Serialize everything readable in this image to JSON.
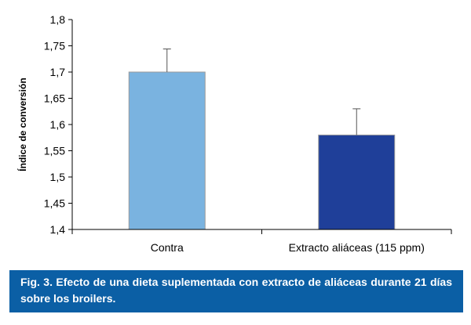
{
  "chart_data": {
    "type": "bar",
    "categories": [
      "Contra",
      "Extracto aliáceas (115 ppm)"
    ],
    "values": [
      1.7,
      1.58
    ],
    "error_upper": [
      1.744,
      1.63
    ],
    "colors": [
      "#7ab3e0",
      "#1f3f99"
    ],
    "ylabel": "Índice de conversión",
    "ylim": [
      1.4,
      1.8
    ],
    "yticks": [
      1.4,
      1.45,
      1.5,
      1.55,
      1.6,
      1.65,
      1.7,
      1.75,
      1.8
    ],
    "ytick_labels": [
      "1,4",
      "1,45",
      "1,5",
      "1,55",
      "1,6",
      "1,65",
      "1,7",
      "1,75",
      "1,8"
    ],
    "grid": false
  },
  "caption": {
    "text": "Fig. 3. Efecto de una dieta suplementada con extracto de aliáceas durante 21 días sobre los broilers."
  }
}
